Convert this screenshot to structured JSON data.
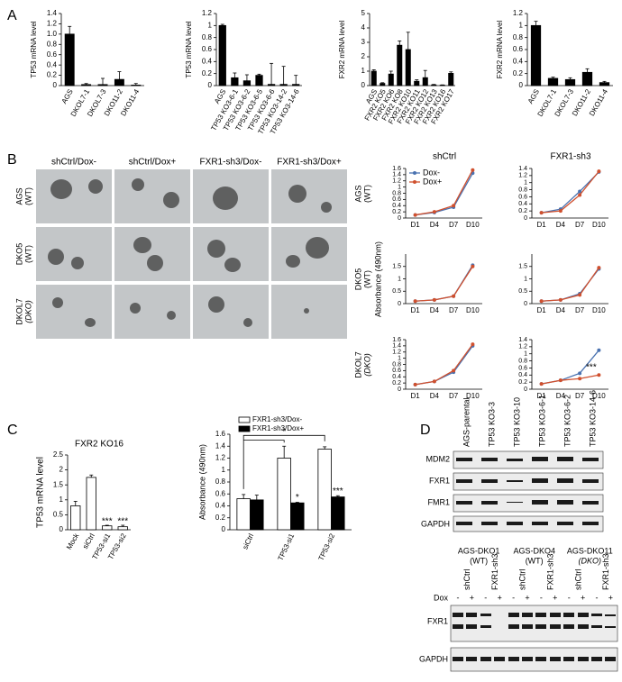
{
  "panel_labels": [
    "A",
    "B",
    "C",
    "D"
  ],
  "panel_a": [
    {
      "ylabel": "TP53 mRNA level",
      "categories": [
        "AGS",
        "DKOL7-1",
        "DKOL7-3",
        "DKO11-2",
        "DKO11-4"
      ],
      "category_colors": [
        "#000000",
        "#b5382f",
        "#b5382f",
        "#000000",
        "#b5382f"
      ],
      "values": [
        1.0,
        0.02,
        0.02,
        0.12,
        0.01
      ],
      "errors": [
        0.15,
        0.02,
        0.12,
        0.15,
        0.03
      ],
      "color": "#000000",
      "ylim": [
        0,
        1.4
      ],
      "yticks": [
        0,
        0.2,
        0.4,
        0.6,
        0.8,
        {
          "value": 1,
          "label": "1.0"
        },
        1.2,
        1.4
      ]
    },
    {
      "ylabel": "TP53 mRNA level",
      "categories": [
        "AGS",
        "TP53 KO3-6-1",
        "TP53 KO3-6-2",
        "TP53 KO3-6-5",
        "TP53 KO3-6-6",
        "TP53 KO3-14-2",
        "TP53 KO3-14-6"
      ],
      "category_colors": [
        "#000000",
        "#b5382f",
        "#b5382f",
        "#b5382f",
        "#b5382f",
        "#b5382f",
        "#b5382f"
      ],
      "values": [
        1.0,
        0.13,
        0.08,
        0.17,
        0.02,
        0.02,
        0.02
      ],
      "errors": [
        0.02,
        0.08,
        0.1,
        0.02,
        0.35,
        0.3,
        0.15
      ],
      "color": "#000000",
      "ylim": [
        0,
        1.2
      ],
      "yticks": [
        0,
        0.2,
        0.4,
        0.6,
        0.8,
        1,
        1.2
      ]
    },
    {
      "ylabel": "FXR2 mRNA level",
      "categories": [
        "AGS",
        "FXR2 KO5",
        "FXR2 KO6",
        "FXR2 KO8",
        "FXR2 KO10",
        "FXR2 KO11",
        "FXR2 KO12",
        "FXR2 KO13",
        "FXR2 KO16",
        "FXR2 KO17"
      ],
      "category_colors": [
        "#000000",
        "#b5382f",
        "#b5382f",
        "#000000",
        "#000000",
        "#000000",
        "#000000",
        "#000000",
        "#b5382f",
        "#000000"
      ],
      "values": [
        1.0,
        0.15,
        0.8,
        2.8,
        2.5,
        0.3,
        0.55,
        0.05,
        0.03,
        0.85
      ],
      "errors": [
        0.1,
        0.05,
        0.2,
        0.3,
        1.2,
        0.1,
        0.5,
        0.03,
        0.02,
        0.1
      ],
      "color": "#000000",
      "ylim": [
        0,
        5
      ],
      "yticks": [
        0,
        1,
        2,
        3,
        4,
        5
      ]
    },
    {
      "ylabel": "FXR2 mRNA level",
      "categories": [
        "AGS",
        "DKOL7-1",
        "DKOL7-3",
        "DKO11-2",
        "DKO11-4"
      ],
      "category_colors": [
        "#000000",
        "#b5382f",
        "#b5382f",
        "#000000",
        "#b5382f"
      ],
      "values": [
        1.0,
        0.12,
        0.1,
        0.22,
        0.05
      ],
      "errors": [
        0.07,
        0.02,
        0.03,
        0.06,
        0.02
      ],
      "color": "#000000",
      "ylim": [
        0,
        1.2
      ],
      "yticks": [
        0,
        0.2,
        0.4,
        0.6,
        0.8,
        1,
        1.2
      ]
    }
  ],
  "panel_b": {
    "columns": [
      "shCtrl/Dox-",
      "shCtrl/Dox+",
      "FXR1-sh3/Dox-",
      "FXR1-sh3/Dox+"
    ],
    "rows": [
      {
        "name": "AGS",
        "sub": "(WT)",
        "color": "#000000"
      },
      {
        "name": "DKO5",
        "sub": "(WT)",
        "color": "#000000"
      },
      {
        "name": "DKOL7",
        "sub": "(DKO)",
        "color": "#b5382f"
      }
    ],
    "lines": {
      "ylabel": "Absorbance (490nm)",
      "columns": [
        "shCtrl",
        "FXR1-sh3"
      ],
      "categories": [
        "D1",
        "D4",
        "D7",
        "D10"
      ],
      "legend": [
        {
          "name": "Dox-",
          "color": "#4a72b0"
        },
        {
          "name": "Dox+",
          "color": "#d0502e"
        }
      ],
      "annotation": "***",
      "charts": [
        {
          "ylim": [
            0,
            1.6
          ],
          "yticks": [
            0,
            0.2,
            0.4,
            0.6,
            0.8,
            1,
            1.2,
            1.4,
            1.6
          ],
          "series": [
            {
              "values": [
                0.1,
                0.18,
                0.35,
                1.45
              ]
            },
            {
              "values": [
                0.1,
                0.2,
                0.4,
                1.55
              ]
            }
          ]
        },
        {
          "ylim": [
            0,
            1.4
          ],
          "yticks": [
            0,
            0.2,
            0.4,
            0.6,
            0.8,
            1,
            1.2,
            1.4
          ],
          "series": [
            {
              "values": [
                0.15,
                0.25,
                0.75,
                1.3
              ]
            },
            {
              "values": [
                0.15,
                0.2,
                0.65,
                1.32
              ]
            }
          ]
        },
        {
          "ylim": [
            0,
            2
          ],
          "yticks": [
            0,
            0.5,
            1,
            1.5
          ],
          "series": [
            {
              "values": [
                0.1,
                0.15,
                0.3,
                1.55
              ]
            },
            {
              "values": [
                0.1,
                0.15,
                0.3,
                1.5
              ]
            }
          ]
        },
        {
          "ylim": [
            0,
            2
          ],
          "yticks": [
            0,
            0.5,
            1,
            1.5
          ],
          "series": [
            {
              "values": [
                0.1,
                0.15,
                0.4,
                1.4
              ]
            },
            {
              "values": [
                0.1,
                0.15,
                0.35,
                1.45
              ]
            }
          ]
        },
        {
          "ylim": [
            0,
            1.6
          ],
          "yticks": [
            0,
            0.2,
            0.4,
            0.6,
            0.8,
            1,
            1.2,
            1.4,
            1.6
          ],
          "series": [
            {
              "values": [
                0.15,
                0.25,
                0.55,
                1.4
              ]
            },
            {
              "values": [
                0.15,
                0.25,
                0.6,
                1.45
              ]
            }
          ]
        },
        {
          "ylim": [
            0,
            1.4
          ],
          "yticks": [
            0,
            0.2,
            0.4,
            0.6,
            0.8,
            1,
            1.2,
            1.4
          ],
          "series": [
            {
              "values": [
                0.15,
                0.25,
                0.45,
                1.1
              ]
            },
            {
              "values": [
                0.15,
                0.25,
                0.3,
                0.4
              ]
            }
          ]
        }
      ]
    }
  },
  "panel_c": [
    {
      "title": "FXR2 KO16",
      "ylabel": "TP53 mRNA  level",
      "categories": [
        "Mock",
        "siCtrl",
        "TP53-si1",
        "TP53-si2"
      ],
      "values": [
        0.8,
        1.75,
        0.13,
        0.1
      ],
      "errors": [
        0.15,
        0.08,
        0.02,
        0.05
      ],
      "color": "#ffffff",
      "ylim": [
        0,
        2.5
      ],
      "yticks": [
        0,
        0.5,
        1,
        1.5,
        2,
        2.5
      ],
      "annotations": [
        "***",
        "***"
      ]
    },
    {
      "ylabel": "Absorbance (490nm)",
      "categories": [
        "siCtrl",
        "TP53-si1",
        "TP53-si2"
      ],
      "series": [
        {
          "name": "FXR1-sh3/Dox-",
          "color": "#ffffff",
          "values": [
            0.52,
            1.2,
            1.35
          ],
          "errors": [
            0.07,
            0.2,
            0.04
          ]
        },
        {
          "name": "FXR1-sh3/Dox+",
          "color": "#000000",
          "values": [
            0.5,
            0.45,
            0.55
          ],
          "errors": [
            0.08,
            0.01,
            0.02
          ]
        }
      ],
      "ylim": [
        0,
        1.6
      ],
      "yticks": [
        0,
        0.2,
        0.4,
        0.6,
        0.8,
        1,
        1.2,
        1.4,
        1.6
      ],
      "annotations": [
        "*",
        "*",
        "***"
      ]
    }
  ],
  "panel_d": {
    "lanes": [
      {
        "label": "AGS-parental",
        "color": "#000000"
      },
      {
        "label": "TP53 KO3-3",
        "color": "#000000"
      },
      {
        "label": "TP53 KO3-10",
        "color": "#000000"
      },
      {
        "label": "TP53 KO3-6-1",
        "color": "#b5382f"
      },
      {
        "label": "TP53 KO3-6-2",
        "color": "#b5382f"
      },
      {
        "label": "TP53 KO3-14-6",
        "color": "#b5382f"
      }
    ],
    "bands": [
      "MDM2",
      "FXR1",
      "FMR1",
      "GAPDH"
    ],
    "groups": [
      {
        "name": "AGS-DKO1",
        "sub": "(WT)",
        "color": "#000000"
      },
      {
        "name": "AGS-DKO4",
        "sub": "(WT)",
        "color": "#000000"
      },
      {
        "name": "AGS-DKO11",
        "sub": "(DKO)",
        "color": "#b5382f"
      }
    ],
    "shrna": [
      "shCtrl",
      "FXR1-sh3"
    ],
    "dox_label": "Dox",
    "dox": [
      "-",
      "+"
    ],
    "lower_bands": [
      "FXR1",
      "GAPDH"
    ]
  }
}
